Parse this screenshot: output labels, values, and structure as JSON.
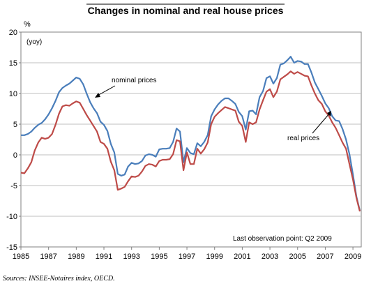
{
  "chart_data": {
    "type": "line",
    "title": "Changes in nominal and real house prices",
    "yunit": "%",
    "ylabel": "(yoy)",
    "ylim": [
      -15,
      20
    ],
    "yticks": [
      "20",
      "15",
      "10",
      "5",
      "0",
      "-5",
      "-10",
      "-15"
    ],
    "xlim": [
      1985,
      2009.6
    ],
    "xticks": [
      "1985",
      "1987",
      "1989",
      "1991",
      "1993",
      "1995",
      "1997",
      "1999",
      "2001",
      "2003",
      "2005",
      "2007",
      "2009"
    ],
    "grid": "horizontal",
    "annotations": [
      {
        "text": "nominal prices",
        "series": "nominal"
      },
      {
        "text": "real prices",
        "series": "real"
      },
      {
        "text": "Last observation point: Q2 2009"
      }
    ],
    "source": "Sources: INSEE-Notaires index, OECD.",
    "series": [
      {
        "name": "nominal prices",
        "key": "nominal",
        "color": "#4a7ebb",
        "x": [
          1985.0,
          1985.25,
          1985.5,
          1985.75,
          1986.0,
          1986.25,
          1986.5,
          1986.75,
          1987.0,
          1987.25,
          1987.5,
          1987.75,
          1988.0,
          1988.25,
          1988.5,
          1988.75,
          1989.0,
          1989.25,
          1989.5,
          1989.75,
          1990.0,
          1990.25,
          1990.5,
          1990.75,
          1991.0,
          1991.25,
          1991.5,
          1991.75,
          1992.0,
          1992.25,
          1992.5,
          1992.75,
          1993.0,
          1993.25,
          1993.5,
          1993.75,
          1994.0,
          1994.25,
          1994.5,
          1994.75,
          1995.0,
          1995.25,
          1995.5,
          1995.75,
          1996.0,
          1996.25,
          1996.5,
          1996.75,
          1997.0,
          1997.25,
          1997.5,
          1997.75,
          1998.0,
          1998.25,
          1998.5,
          1998.75,
          1999.0,
          1999.25,
          1999.5,
          1999.75,
          2000.0,
          2000.25,
          2000.5,
          2000.75,
          2001.0,
          2001.25,
          2001.5,
          2001.75,
          2002.0,
          2002.25,
          2002.5,
          2002.75,
          2003.0,
          2003.25,
          2003.5,
          2003.75,
          2004.0,
          2004.25,
          2004.5,
          2004.75,
          2005.0,
          2005.25,
          2005.5,
          2005.75,
          2006.0,
          2006.25,
          2006.5,
          2006.75,
          2007.0,
          2007.25,
          2007.5,
          2007.75,
          2008.0,
          2008.25,
          2008.5,
          2008.75,
          2009.0,
          2009.25,
          2009.5
        ],
        "values": [
          3.2,
          3.2,
          3.4,
          3.8,
          4.4,
          4.9,
          5.2,
          5.8,
          6.6,
          7.6,
          8.8,
          10.2,
          10.9,
          11.3,
          11.6,
          12.1,
          12.6,
          12.4,
          11.5,
          10.0,
          8.6,
          7.6,
          6.8,
          5.4,
          4.9,
          3.9,
          1.8,
          0.4,
          -3.1,
          -3.4,
          -3.2,
          -1.9,
          -1.3,
          -1.5,
          -1.4,
          -1.0,
          -0.1,
          0.1,
          0.0,
          -0.3,
          0.9,
          1.0,
          1.0,
          1.1,
          2.1,
          4.3,
          3.8,
          -1.2,
          1.1,
          0.3,
          0.1,
          1.9,
          1.4,
          2.1,
          3.2,
          6.3,
          7.4,
          8.2,
          8.8,
          9.2,
          9.2,
          8.8,
          8.3,
          7.0,
          6.3,
          4.1,
          7.1,
          7.2,
          6.6,
          9.4,
          10.4,
          12.5,
          12.8,
          11.6,
          12.5,
          14.7,
          14.9,
          15.4,
          16.0,
          15.0,
          15.3,
          15.2,
          14.8,
          14.8,
          13.4,
          11.8,
          10.7,
          9.6,
          8.4,
          7.6,
          6.3,
          5.6,
          5.5,
          4.2,
          2.5,
          0.1,
          -3.2,
          -6.8,
          -9.1
        ]
      },
      {
        "name": "real prices",
        "key": "real",
        "color": "#be4b48",
        "x": [
          1985.0,
          1985.25,
          1985.5,
          1985.75,
          1986.0,
          1986.25,
          1986.5,
          1986.75,
          1987.0,
          1987.25,
          1987.5,
          1987.75,
          1988.0,
          1988.25,
          1988.5,
          1988.75,
          1989.0,
          1989.25,
          1989.5,
          1989.75,
          1990.0,
          1990.25,
          1990.5,
          1990.75,
          1991.0,
          1991.25,
          1991.5,
          1991.75,
          1992.0,
          1992.25,
          1992.5,
          1992.75,
          1993.0,
          1993.25,
          1993.5,
          1993.75,
          1994.0,
          1994.25,
          1994.5,
          1994.75,
          1995.0,
          1995.25,
          1995.5,
          1995.75,
          1996.0,
          1996.25,
          1996.5,
          1996.75,
          1997.0,
          1997.25,
          1997.5,
          1997.75,
          1998.0,
          1998.25,
          1998.5,
          1998.75,
          1999.0,
          1999.25,
          1999.5,
          1999.75,
          2000.0,
          2000.25,
          2000.5,
          2000.75,
          2001.0,
          2001.25,
          2001.5,
          2001.75,
          2002.0,
          2002.25,
          2002.5,
          2002.75,
          2003.0,
          2003.25,
          2003.5,
          2003.75,
          2004.0,
          2004.25,
          2004.5,
          2004.75,
          2005.0,
          2005.25,
          2005.5,
          2005.75,
          2006.0,
          2006.25,
          2006.5,
          2006.75,
          2007.0,
          2007.25,
          2007.5,
          2007.75,
          2008.0,
          2008.25,
          2008.5,
          2008.75,
          2009.0,
          2009.25,
          2009.5
        ],
        "values": [
          -2.9,
          -3.0,
          -2.2,
          -1.2,
          0.7,
          2.0,
          2.8,
          2.6,
          2.8,
          3.4,
          4.9,
          6.7,
          7.9,
          8.1,
          8.0,
          8.4,
          8.7,
          8.5,
          7.5,
          6.5,
          5.6,
          4.7,
          3.8,
          2.1,
          1.8,
          1.0,
          -1.1,
          -2.5,
          -5.7,
          -5.5,
          -5.2,
          -4.3,
          -3.5,
          -3.6,
          -3.4,
          -2.7,
          -1.8,
          -1.5,
          -1.6,
          -1.9,
          -1.0,
          -0.8,
          -0.8,
          -0.7,
          0.1,
          2.4,
          2.2,
          -2.5,
          0.4,
          -1.5,
          -1.5,
          1.0,
          0.2,
          0.9,
          2.0,
          5.0,
          6.2,
          6.8,
          7.3,
          7.8,
          7.6,
          7.4,
          7.2,
          5.4,
          4.7,
          2.1,
          5.3,
          5.0,
          5.3,
          7.4,
          8.9,
          10.3,
          10.7,
          9.4,
          10.3,
          12.3,
          12.7,
          13.1,
          13.6,
          13.2,
          13.5,
          13.2,
          12.9,
          12.8,
          11.3,
          10.0,
          8.9,
          8.3,
          7.1,
          6.4,
          5.3,
          4.4,
          3.2,
          2.0,
          1.0,
          -1.5,
          -4.0,
          -7.0,
          -9.2
        ]
      }
    ]
  }
}
